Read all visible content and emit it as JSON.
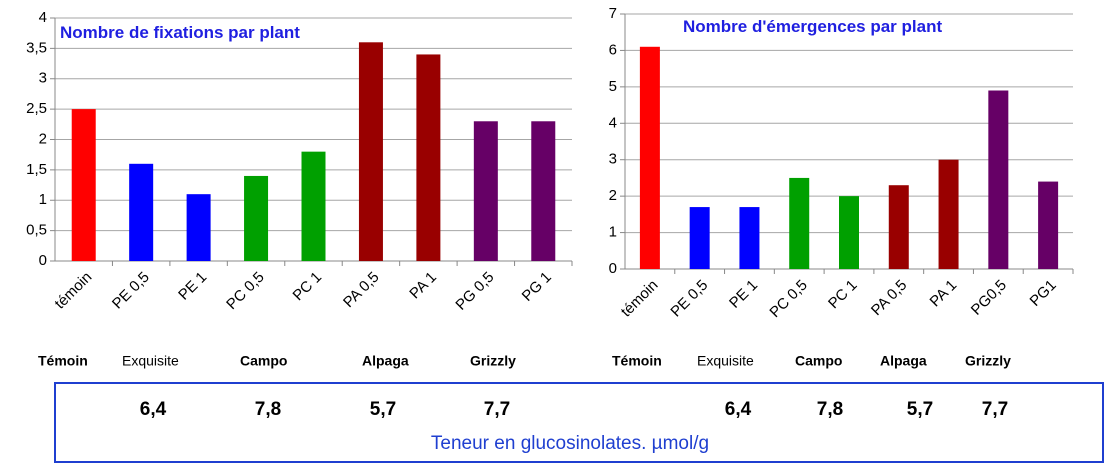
{
  "chart_data": [
    {
      "type": "bar",
      "title": "Nombre de fixations par plant",
      "categories": [
        "témoin",
        "PE 0,5",
        "PE 1",
        "PC 0,5",
        "PC 1",
        "PA 0,5",
        "PA 1",
        "PG 0,5",
        "PG 1"
      ],
      "values": [
        2.5,
        1.6,
        1.1,
        1.4,
        1.8,
        3.6,
        3.4,
        2.3,
        2.3
      ],
      "colors": [
        "#ff0000",
        "#0000ff",
        "#0000ff",
        "#00a000",
        "#00a000",
        "#990000",
        "#990000",
        "#660066",
        "#660066"
      ],
      "ylim": [
        0,
        4
      ],
      "yticks": [
        0,
        {
          "value": 0.5,
          "label": "0,5"
        },
        1,
        {
          "value": 1.5,
          "label": "1,5"
        },
        2,
        {
          "value": 2.5,
          "label": "2,5"
        },
        3,
        {
          "value": 3.5,
          "label": "3,5"
        },
        4
      ],
      "grid": true
    },
    {
      "type": "bar",
      "title": "Nombre d'émergences par plant",
      "categories": [
        "témoin",
        "PE 0,5",
        "PE 1",
        "PC 0,5",
        "PC 1",
        "PA 0,5",
        "PA 1",
        "PG0,5",
        "PG1"
      ],
      "values": [
        6.1,
        1.7,
        1.7,
        2.5,
        2.0,
        2.3,
        3.0,
        4.9,
        2.4
      ],
      "colors": [
        "#ff0000",
        "#0000ff",
        "#0000ff",
        "#00a000",
        "#00a000",
        "#990000",
        "#990000",
        "#660066",
        "#660066"
      ],
      "ylim": [
        0,
        7
      ],
      "yticks": [
        0,
        1,
        2,
        3,
        4,
        5,
        6,
        7
      ],
      "grid": true
    }
  ],
  "legends": [
    [
      {
        "label": "Témoin",
        "color": "#ff0000"
      },
      {
        "label": "Exquisite",
        "color": "#0000ff"
      },
      {
        "label": "Campo",
        "color": "#00a000"
      },
      {
        "label": "Alpaga",
        "color": "#990000"
      },
      {
        "label": "Grizzly",
        "color": "#7030a0"
      }
    ],
    [
      {
        "label": "Témoin",
        "color": "#ff0000"
      },
      {
        "label": "Exquisite",
        "color": "#0000ff"
      },
      {
        "label": "Campo",
        "color": "#00a000"
      },
      {
        "label": "Alpaga",
        "color": "#990000"
      },
      {
        "label": "Grizzly",
        "color": "#7030a0"
      }
    ]
  ],
  "glucosinolates": {
    "values": [
      [
        {
          "label": "6,4",
          "color": "#0033cc"
        },
        {
          "label": "7,8",
          "color": "#33aa66"
        },
        {
          "label": "5,7",
          "color": "#990000"
        },
        {
          "label": "7,7",
          "color": "#7030a0"
        }
      ],
      [
        {
          "label": "6,4",
          "color": "#0033cc"
        },
        {
          "label": "7,8",
          "color": "#33aa66"
        },
        {
          "label": "5,7",
          "color": "#990000"
        },
        {
          "label": "7,7",
          "color": "#7030a0"
        }
      ]
    ],
    "caption": "Teneur en glucosinolates. µmol/g"
  }
}
